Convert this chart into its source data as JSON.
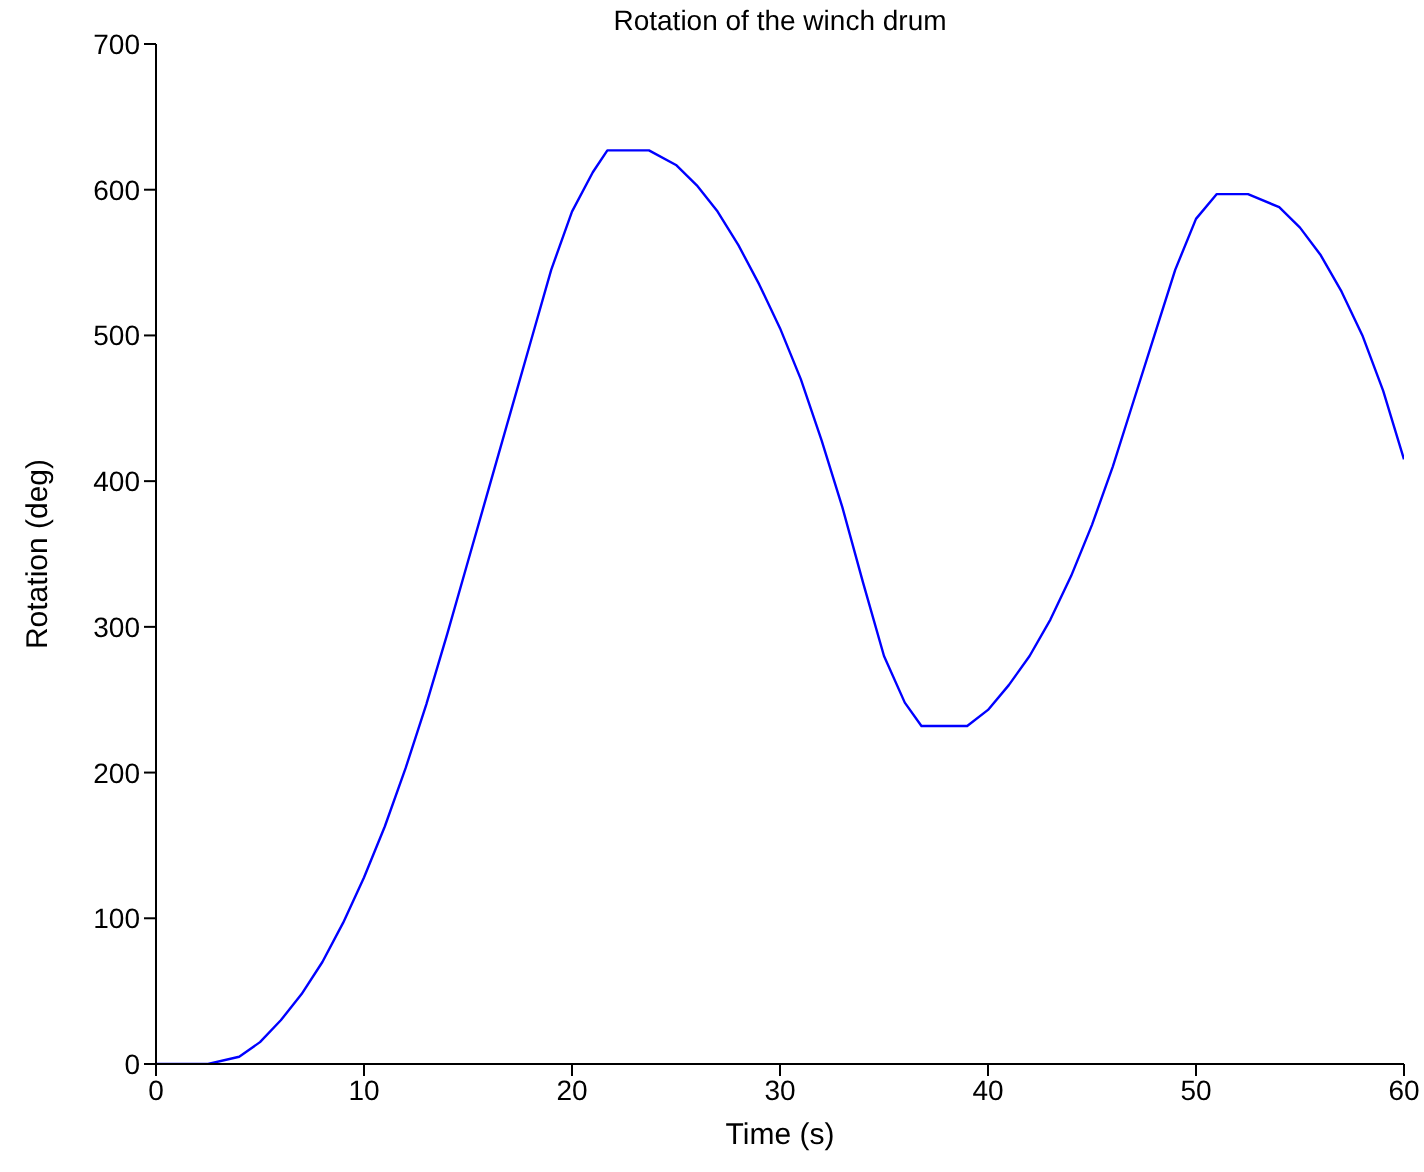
{
  "chart_data": {
    "type": "line",
    "title": "Rotation of the winch drum",
    "xlabel": "Time (s)",
    "ylabel": "Rotation (deg)",
    "x": [
      0,
      2.5,
      4,
      5,
      6,
      7,
      8,
      9,
      10,
      11,
      12,
      13,
      14,
      15,
      16,
      17,
      18,
      19,
      20,
      21,
      21.7,
      23.7,
      25,
      26,
      27,
      28,
      29,
      30,
      31,
      32,
      33,
      34,
      35,
      36,
      36.8,
      39,
      40,
      41,
      42,
      43,
      44,
      45,
      46,
      47,
      48,
      49,
      50,
      51,
      52.5,
      54,
      55,
      56,
      57,
      58,
      59,
      60
    ],
    "series": [
      {
        "color": "#0000ff",
        "values": [
          0,
          0,
          5,
          15,
          30,
          48,
          70,
          97,
          128,
          163,
          203,
          247,
          295,
          345,
          395,
          445,
          495,
          545,
          585,
          612,
          627,
          627,
          617,
          603,
          585,
          562,
          535,
          505,
          470,
          428,
          382,
          330,
          280,
          248,
          232,
          232,
          243,
          260,
          280,
          305,
          335,
          370,
          410,
          455,
          500,
          545,
          580,
          597,
          597,
          588,
          574,
          555,
          530,
          500,
          462,
          415
        ]
      }
    ],
    "xlim": [
      0,
      60
    ],
    "xticks": [
      0,
      10,
      20,
      30,
      40,
      50,
      60
    ],
    "ylim": [
      0,
      700
    ],
    "yticks": [
      0,
      100,
      200,
      300,
      400,
      500,
      600,
      700
    ],
    "grid": false,
    "legend": false,
    "marker": "none",
    "line_style": "solid"
  }
}
